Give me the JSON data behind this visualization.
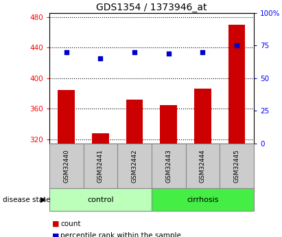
{
  "title": "GDS1354 / 1373946_at",
  "samples": [
    "GSM32440",
    "GSM32441",
    "GSM32442",
    "GSM32443",
    "GSM32444",
    "GSM32445"
  ],
  "count_values": [
    385,
    328,
    372,
    365,
    386,
    470
  ],
  "percentile_values": [
    70,
    65,
    70,
    69,
    70,
    75
  ],
  "ylim_left": [
    315,
    485
  ],
  "ylim_right": [
    0,
    100
  ],
  "yticks_left": [
    320,
    360,
    400,
    440,
    480
  ],
  "yticks_right": [
    0,
    25,
    50,
    75,
    100
  ],
  "bar_color": "#cc0000",
  "dot_color": "#0000cc",
  "control_color": "#bbffbb",
  "cirrhosis_color": "#44ee44",
  "label_bg_color": "#cccccc",
  "legend_count_label": "count",
  "legend_pct_label": "percentile rank within the sample",
  "disease_state_label": "disease state",
  "group_label_control": "control",
  "group_label_cirrhosis": "cirrhosis",
  "bar_width": 0.5,
  "base_value": 315,
  "n_control": 3,
  "n_cirrhosis": 3
}
